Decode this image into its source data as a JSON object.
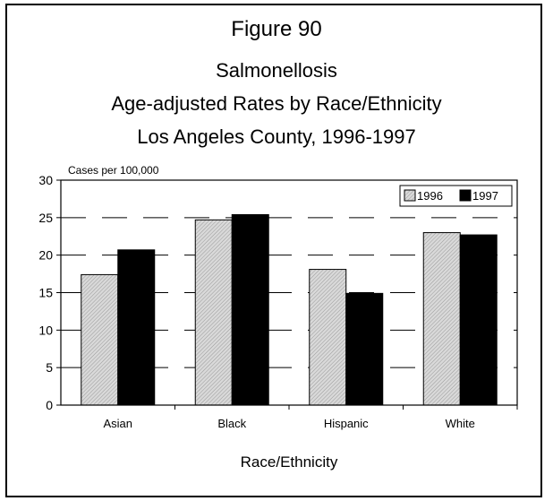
{
  "figure_label": "Figure 90",
  "chart_data": {
    "type": "bar",
    "title": [
      "Salmonellosis",
      "Age-adjusted Rates by Race/Ethnicity",
      "Los Angeles County, 1996-1997"
    ],
    "ylabel": "Cases per 100,000",
    "xlabel": "Race/Ethnicity",
    "categories": [
      "Asian",
      "Black",
      "Hispanic",
      "White"
    ],
    "ylim": [
      0,
      30
    ],
    "yticks": [
      0,
      5,
      10,
      15,
      20,
      25,
      30
    ],
    "grid": "dashed horizontal",
    "legend": "top-right",
    "series": [
      {
        "name": "1996",
        "values": [
          17.4,
          24.7,
          18.1,
          23.0
        ],
        "color": "#c8c8c8",
        "pattern": "diagonal-hatch"
      },
      {
        "name": "1997",
        "values": [
          20.7,
          25.4,
          14.9,
          22.7
        ],
        "color": "#000000"
      }
    ]
  }
}
